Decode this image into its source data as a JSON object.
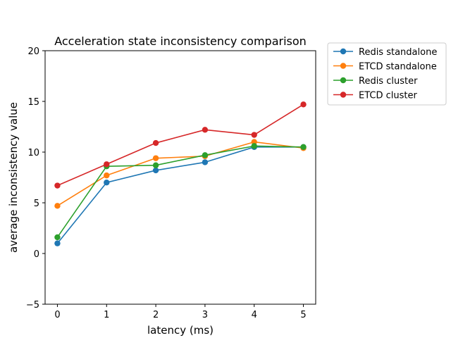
{
  "chart_data": {
    "type": "line",
    "title": "Acceleration state inconsistency comparison",
    "xlabel": "latency (ms)",
    "ylabel": "average inconsistency value",
    "x": [
      0,
      1,
      2,
      3,
      4,
      5
    ],
    "xlim": [
      -0.25,
      5.25
    ],
    "ylim": [
      -5,
      20
    ],
    "xticks": [
      "0",
      "1",
      "2",
      "3",
      "4",
      "5"
    ],
    "yticks": [
      "−5",
      "0",
      "5",
      "10",
      "15",
      "20"
    ],
    "grid": false,
    "legend_position": "outside-top-right",
    "series": [
      {
        "name": "Redis standalone",
        "color": "#1f77b4",
        "values": [
          1.0,
          7.0,
          8.2,
          9.0,
          10.5,
          10.5
        ]
      },
      {
        "name": "ETCD standalone",
        "color": "#ff7f0e",
        "values": [
          4.7,
          7.7,
          9.4,
          9.6,
          11.0,
          10.4
        ]
      },
      {
        "name": "Redis cluster",
        "color": "#2ca02c",
        "values": [
          1.6,
          8.6,
          8.7,
          9.7,
          10.6,
          10.5
        ]
      },
      {
        "name": "ETCD cluster",
        "color": "#d62728",
        "values": [
          6.7,
          8.8,
          10.9,
          12.2,
          11.7,
          14.7
        ]
      }
    ]
  }
}
